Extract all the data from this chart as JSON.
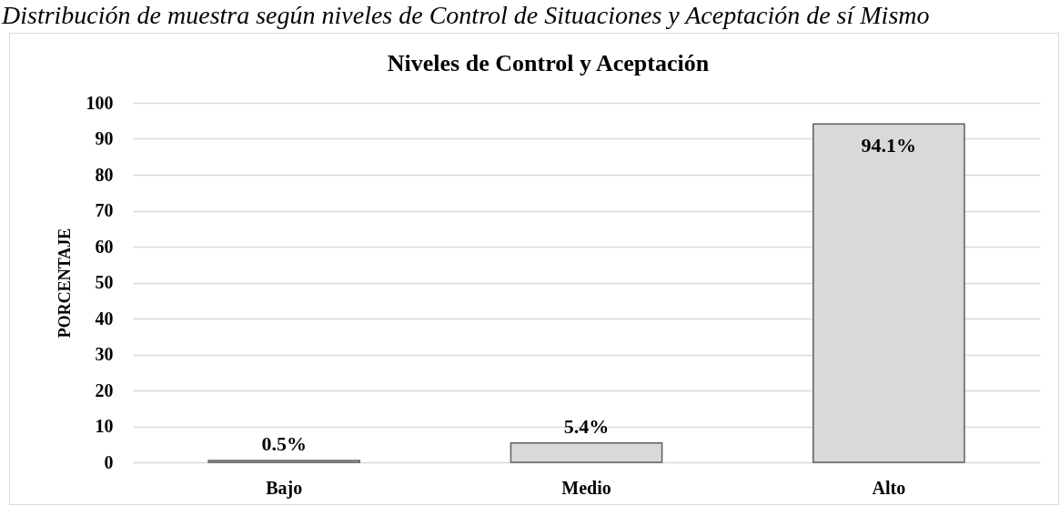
{
  "chart_data": {
    "type": "bar",
    "title": "Niveles de Control y Aceptación",
    "ylabel": "PORCENTAJE",
    "annotations": [
      "Distribución de muestra según niveles de Control de Situaciones y Aceptación de sí Mismo"
    ],
    "categories": [
      "Bajo",
      "Medio",
      "Alto"
    ],
    "values": [
      0.5,
      5.4,
      94.1
    ],
    "value_labels": [
      "0.5%",
      "5.4%",
      "94.1%"
    ],
    "color": "#d9d9d9",
    "ylim": [
      0,
      100
    ],
    "yticks": [
      0,
      10,
      20,
      30,
      40,
      50,
      60,
      70,
      80,
      90,
      100
    ],
    "grid": "y"
  }
}
